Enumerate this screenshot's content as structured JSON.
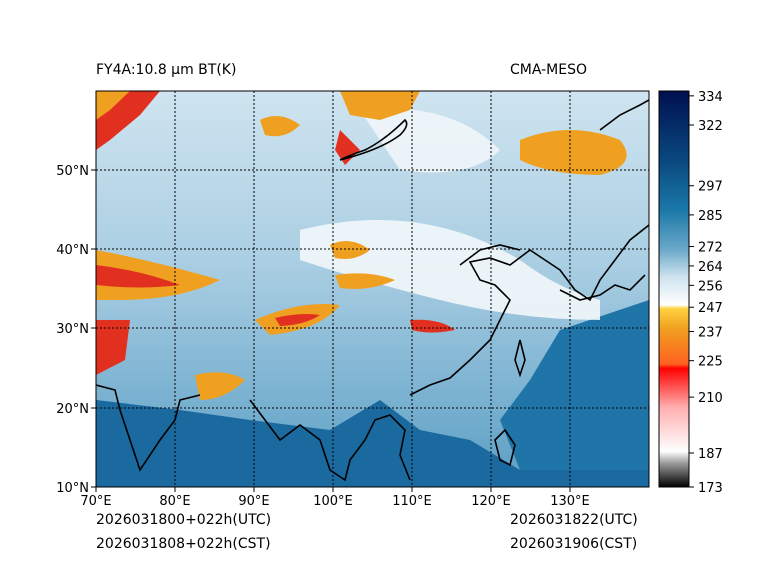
{
  "header": {
    "left_title": "FY4A:10.8 μm BT(K)",
    "right_title": "CMA-MESO"
  },
  "footer": {
    "init_utc": "2026031800+022h(UTC)",
    "init_cst": "2026031808+022h(CST)",
    "valid_utc": "2026031822(UTC)",
    "valid_cst": "2026031906(CST)"
  },
  "map": {
    "lon_labels": [
      "70°E",
      "80°E",
      "90°E",
      "100°E",
      "110°E",
      "120°E",
      "130°E"
    ],
    "lat_labels": [
      "10°N",
      "20°N",
      "30°N",
      "40°N",
      "50°N"
    ],
    "lon_range": [
      70,
      140
    ],
    "lat_range": [
      10,
      60
    ]
  },
  "colorbar": {
    "ticks": [
      "334",
      "322",
      "297",
      "285",
      "272",
      "264",
      "256",
      "247",
      "237",
      "225",
      "210",
      "187",
      "173"
    ],
    "range": [
      173,
      336
    ]
  },
  "colors": {
    "ocean": "#1a6aa0",
    "cloud_cold": "#e2eef5",
    "red_cloud": "#e23020",
    "orange_cloud": "#f0a020",
    "coast": "#000000"
  }
}
